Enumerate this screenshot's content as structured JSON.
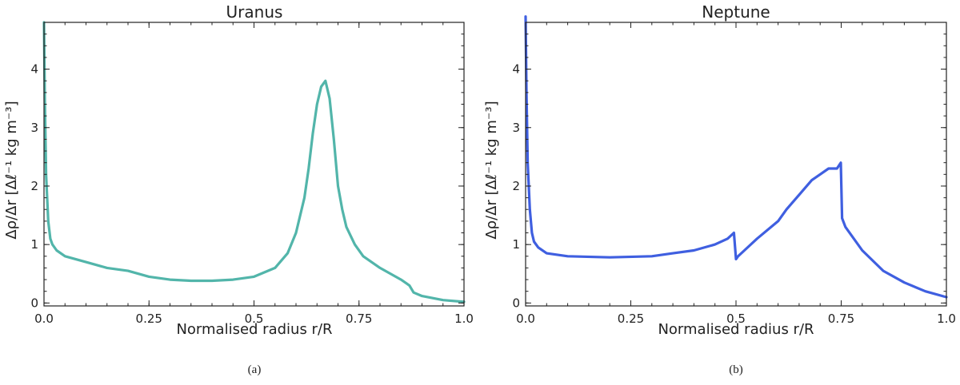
{
  "chart_data": [
    {
      "type": "line",
      "title": "Uranus",
      "xlabel": "Normalised radius r/R",
      "ylabel": "Δρ/Δr [Δℓ⁻¹ kg m⁻³]",
      "xlim": [
        0,
        1
      ],
      "ylim": [
        -0.05,
        4.8
      ],
      "xticks": [
        0,
        0.25,
        0.5,
        0.75,
        1
      ],
      "xtick_labels": [
        "0.0",
        "0.25",
        "0.5",
        "0.75",
        "1.0"
      ],
      "yticks": [
        0,
        1,
        2,
        3,
        4
      ],
      "ytick_labels": [
        "0",
        "1",
        "2",
        "3",
        "4"
      ],
      "caption": "(a)",
      "color": "#52b5aa",
      "series": [
        {
          "x": [
            0.0,
            0.002,
            0.005,
            0.01,
            0.015,
            0.02,
            0.03,
            0.05,
            0.1,
            0.15,
            0.2,
            0.25,
            0.3,
            0.35,
            0.4,
            0.45,
            0.5,
            0.55,
            0.58,
            0.6,
            0.62,
            0.63,
            0.64,
            0.65,
            0.66,
            0.67,
            0.68,
            0.69,
            0.7,
            0.71,
            0.72,
            0.74,
            0.76,
            0.8,
            0.85,
            0.87,
            0.88,
            0.9,
            0.95,
            1.0
          ],
          "y": [
            4.8,
            3.5,
            2.2,
            1.4,
            1.1,
            1.0,
            0.9,
            0.8,
            0.7,
            0.6,
            0.55,
            0.45,
            0.4,
            0.38,
            0.38,
            0.4,
            0.45,
            0.6,
            0.85,
            1.2,
            1.8,
            2.3,
            2.9,
            3.4,
            3.7,
            3.8,
            3.5,
            2.8,
            2.0,
            1.6,
            1.3,
            1.0,
            0.8,
            0.6,
            0.4,
            0.3,
            0.18,
            0.12,
            0.05,
            0.02
          ]
        }
      ]
    },
    {
      "type": "line",
      "title": "Neptune",
      "xlabel": "Normalised radius r/R",
      "ylabel": "Δρ/Δr [Δℓ⁻¹ kg m⁻³]",
      "xlim": [
        0,
        1
      ],
      "ylim": [
        -0.05,
        4.8
      ],
      "xticks": [
        0,
        0.25,
        0.5,
        0.75,
        1
      ],
      "xtick_labels": [
        "0.0",
        "0.25",
        "0.5",
        "0.75",
        "1.0"
      ],
      "yticks": [
        0,
        1,
        2,
        3,
        4
      ],
      "ytick_labels": [
        "0",
        "1",
        "2",
        "3",
        "4"
      ],
      "caption": "(b)",
      "color": "#3f5fe0",
      "series": [
        {
          "x": [
            0.0,
            0.002,
            0.005,
            0.01,
            0.015,
            0.02,
            0.03,
            0.05,
            0.1,
            0.2,
            0.3,
            0.35,
            0.4,
            0.45,
            0.48,
            0.495,
            0.5,
            0.505,
            0.52,
            0.55,
            0.6,
            0.62,
            0.65,
            0.68,
            0.7,
            0.72,
            0.74,
            0.749,
            0.752,
            0.76,
            0.8,
            0.85,
            0.9,
            0.95,
            1.0
          ],
          "y": [
            4.9,
            3.6,
            2.4,
            1.6,
            1.2,
            1.05,
            0.95,
            0.85,
            0.8,
            0.78,
            0.8,
            0.85,
            0.9,
            1.0,
            1.1,
            1.2,
            0.75,
            0.8,
            0.9,
            1.1,
            1.4,
            1.6,
            1.85,
            2.1,
            2.2,
            2.3,
            2.3,
            2.4,
            1.45,
            1.3,
            0.9,
            0.55,
            0.35,
            0.2,
            0.1
          ]
        }
      ]
    }
  ]
}
